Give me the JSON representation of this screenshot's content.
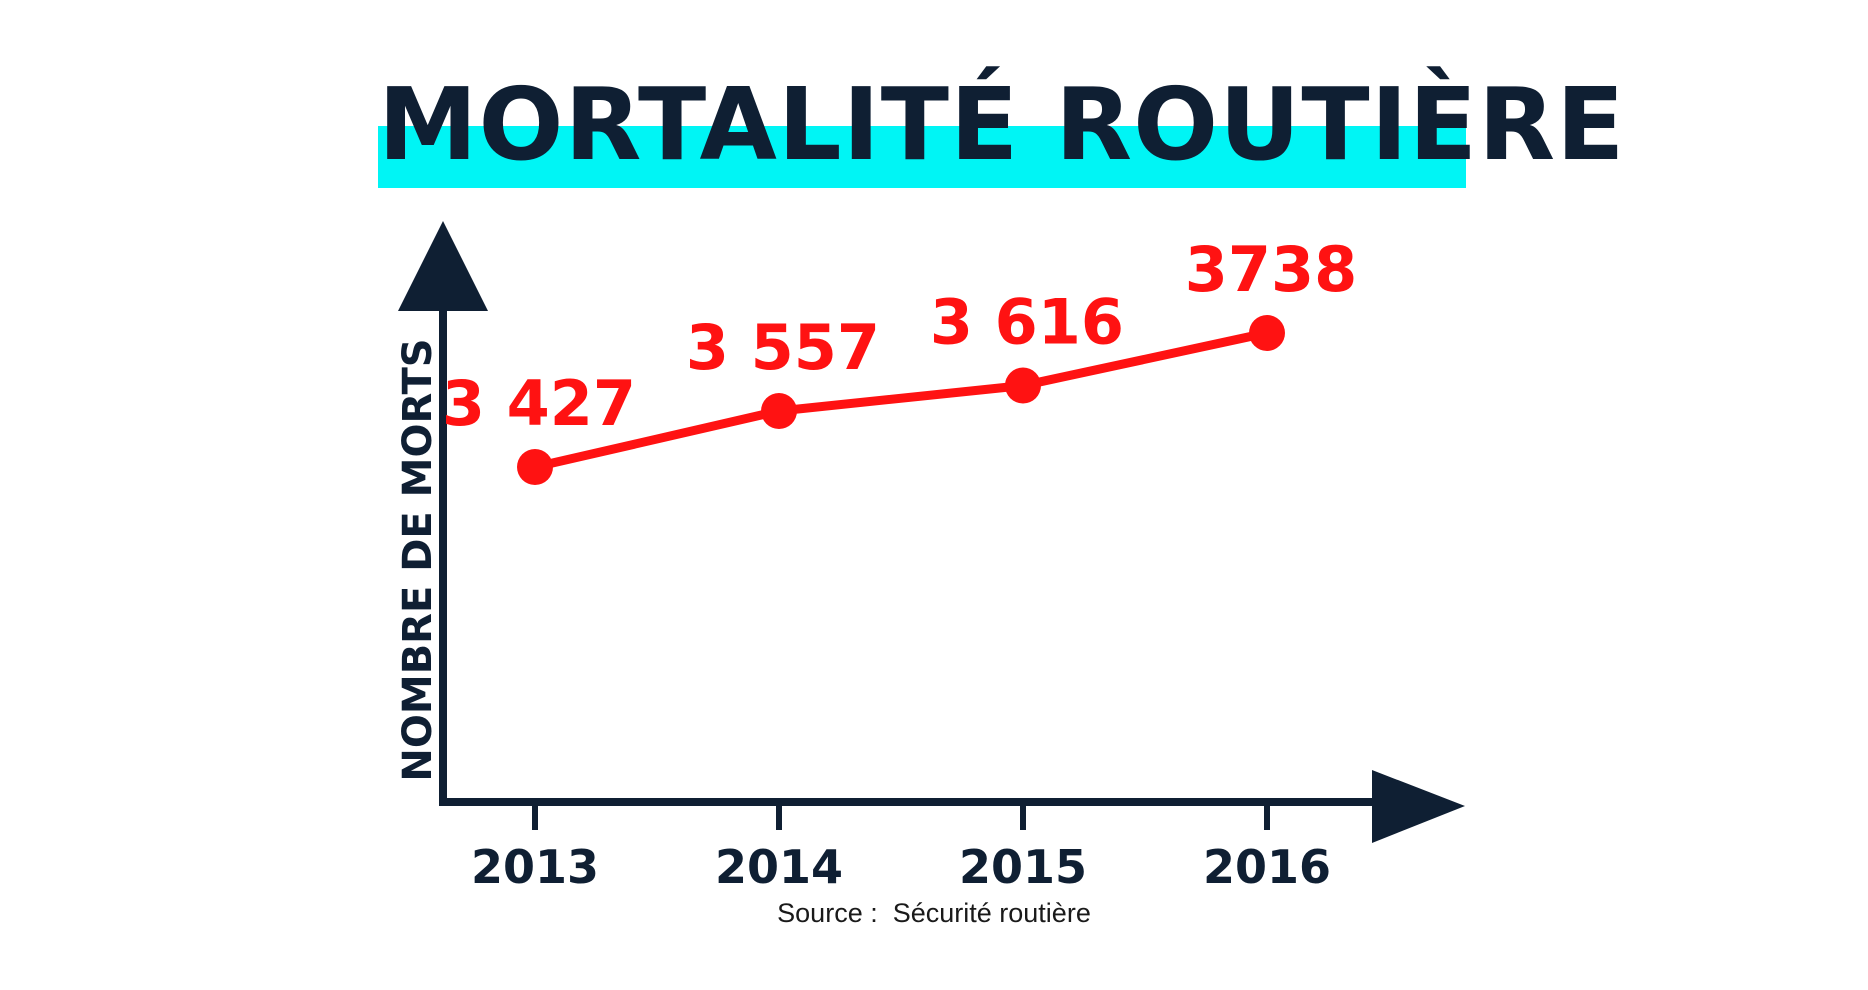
{
  "chart_data": {
    "type": "line",
    "title": "MORTALITÉ ROUTIÈRE",
    "ylabel": "NOMBRE DE MORTS",
    "xlabel": "",
    "categories": [
      "2013",
      "2014",
      "2015",
      "2016"
    ],
    "value_labels": [
      "3 427",
      "3 557",
      "3 616",
      "3738"
    ],
    "series": [
      {
        "values": [
          3427,
          3557,
          3616,
          3738
        ]
      }
    ],
    "ylim": [
      2650,
      4000
    ],
    "grid": false,
    "legend": "none",
    "source": {
      "label": "Source :",
      "text": "Sécurité routière"
    }
  },
  "colors": {
    "title_band": "#00f5f5",
    "axis": "#0f1f33",
    "series": "#ff1212"
  }
}
